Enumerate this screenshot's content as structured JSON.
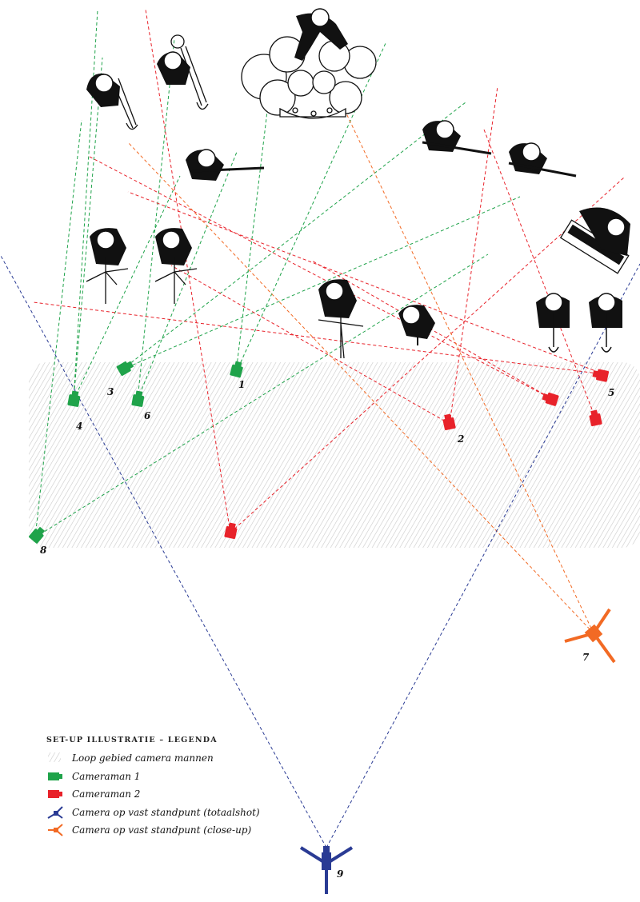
{
  "colors": {
    "cameraman1": "#1fa34a",
    "cameraman2": "#e8222a",
    "fixed_total": "#2a3b94",
    "fixed_closeup": "#f26a24",
    "walk_area": "#cfcfcf",
    "musicians": "#111111"
  },
  "camera_numbers": {
    "c1": "1",
    "c2": "2",
    "c3": "3",
    "c4": "4",
    "c5": "5",
    "c6": "6",
    "c7": "7",
    "c8": "8",
    "c9": "9"
  },
  "legend": {
    "title": "set-up illustratie – legenda",
    "items": [
      {
        "label": "Loop gebied camera mannen",
        "icon": "hatched-area-icon"
      },
      {
        "label": "Cameraman 1",
        "icon": "green-camera-icon"
      },
      {
        "label": "Cameraman 2",
        "icon": "red-camera-icon"
      },
      {
        "label": "Camera op vast standpunt (totaalshot)",
        "icon": "blue-tripod-camera-icon"
      },
      {
        "label": "Camera op vast standpunt (close-up)",
        "icon": "orange-tripod-camera-icon"
      }
    ]
  }
}
